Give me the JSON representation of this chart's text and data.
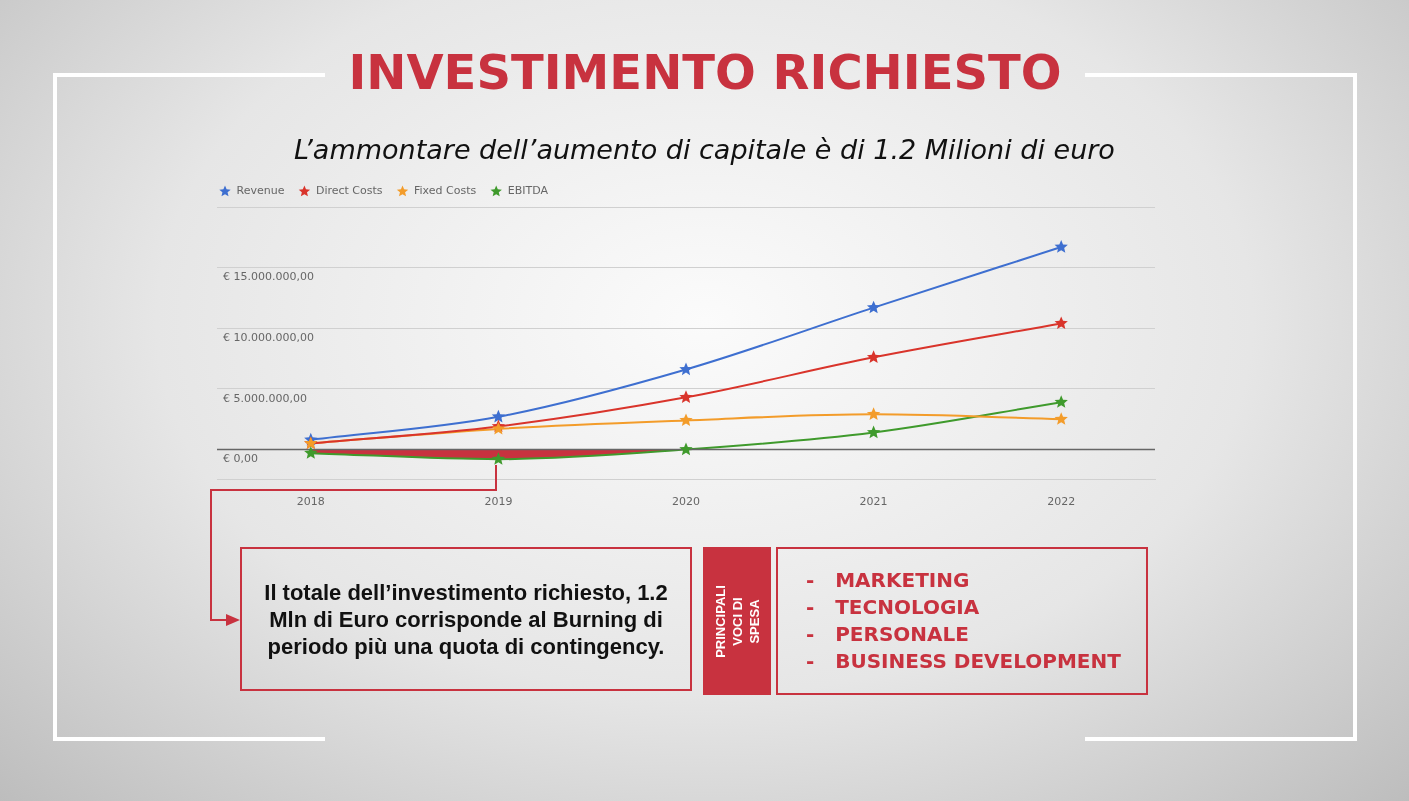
{
  "chart_data": {
    "type": "line",
    "title": "INVESTIMENTO RICHIESTO",
    "subtitle": "L’ammontare dell’aumento di capitale è di 1.2 Milioni di euro",
    "categories": [
      "2018",
      "2019",
      "2020",
      "2021",
      "2022"
    ],
    "series": [
      {
        "name": "Revenue",
        "color": "#3e6fd0",
        "values": [
          800000,
          2700000,
          6600000,
          11700000,
          16700000
        ]
      },
      {
        "name": "Direct Costs",
        "color": "#d9342b",
        "values": [
          500000,
          1900000,
          4300000,
          7600000,
          10400000
        ]
      },
      {
        "name": "Fixed Costs",
        "color": "#f39c2a",
        "values": [
          500000,
          1700000,
          2400000,
          2900000,
          2500000
        ]
      },
      {
        "name": "EBITDA",
        "color": "#3f9a2c",
        "values": [
          -300000,
          -800000,
          0,
          1400000,
          3900000
        ]
      },
      {
        "type": "area",
        "color": "#c8323f",
        "marker": "none",
        "values": [
          -300000,
          -800000,
          0,
          null,
          null
        ]
      }
    ],
    "ylim": [
      -2500000,
      20000000
    ],
    "yticks": [
      {
        "value": 0,
        "label": "€ 0,00"
      },
      {
        "value": 5000000,
        "label": "€ 5.000.000,00"
      },
      {
        "value": 10000000,
        "label": "€ 10.000.000,00"
      },
      {
        "value": 15000000,
        "label": "€ 15.000.000,00"
      },
      {
        "value": 20000000,
        "label": null
      }
    ],
    "ref_lines": [
      {
        "axis": "y",
        "value": 0,
        "color": "#666666"
      }
    ],
    "grid": "y",
    "legend": "top left",
    "marker": "star",
    "annotations": [
      "Il totale dell’investimento richiesto, 1.2 Mln di Euro corrisponde al Burning di periodo più una quota di contingency.",
      "PRINCIPALI VOCI DI SPESA",
      "-   MARKETING",
      "-   TECNOLOGIA",
      "-   PERSONALE",
      "-   BUSINESS DEVELOPMENT"
    ]
  }
}
